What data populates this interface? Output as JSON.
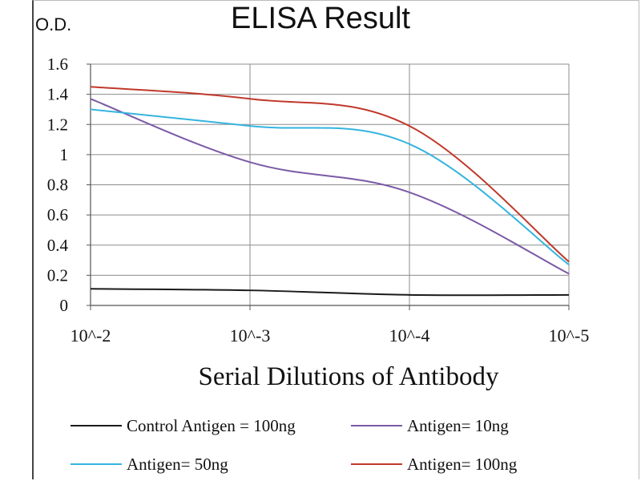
{
  "chart_data": {
    "type": "line",
    "title": "ELISA Result",
    "ylabel": "O.D.",
    "xlabel": "Serial Dilutions  of Antibody",
    "categories": [
      "10^-2",
      "10^-3",
      "10^-4",
      "10^-5"
    ],
    "ylim": [
      0,
      1.6
    ],
    "yticks": [
      "0",
      "0.2",
      "0.4",
      "0.6",
      "0.8",
      "1",
      "1.2",
      "1.4",
      "1.6"
    ],
    "grid": true,
    "legend_position": "bottom",
    "series": [
      {
        "name": "Control Antigen = 100ng",
        "color": "#1a1a1a",
        "values": [
          0.11,
          0.1,
          0.07,
          0.07
        ]
      },
      {
        "name": "Antigen= 10ng",
        "color": "#7b5aa6",
        "values": [
          1.37,
          0.95,
          0.75,
          0.21
        ]
      },
      {
        "name": "Antigen= 50ng",
        "color": "#35b4df",
        "values": [
          1.3,
          1.19,
          1.07,
          0.27
        ]
      },
      {
        "name": "Antigen= 100ng",
        "color": "#c0392b",
        "values": [
          1.45,
          1.37,
          1.19,
          0.29
        ]
      }
    ]
  }
}
